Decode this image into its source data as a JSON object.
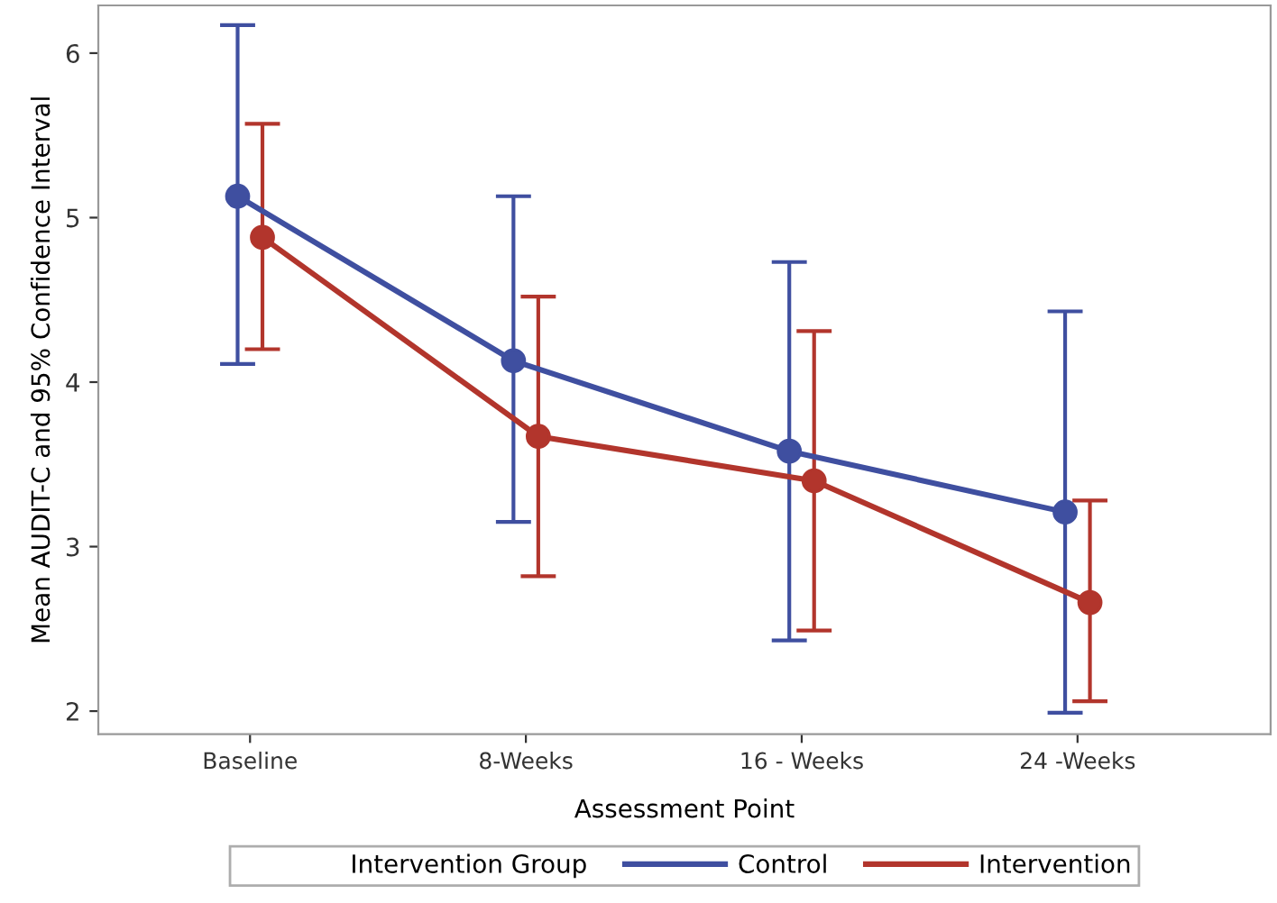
{
  "chart_data": {
    "type": "line",
    "xlabel": "Assessment Point",
    "ylabel": "Mean AUDIT-C and 95% Confidence Interval",
    "categories": [
      "Baseline",
      "8-Weeks",
      "16 - Weeks",
      "24 -Weeks"
    ],
    "series": [
      {
        "name": "Control",
        "color": "#3f4fa0",
        "values": [
          5.13,
          4.13,
          3.58,
          3.21
        ],
        "errors": [
          [
            4.11,
            6.17
          ],
          [
            3.15,
            5.13
          ],
          [
            2.43,
            4.73
          ],
          [
            1.99,
            4.43
          ]
        ]
      },
      {
        "name": "Intervention",
        "color": "#b2352c",
        "values": [
          4.88,
          3.67,
          3.4,
          2.66
        ],
        "errors": [
          [
            4.2,
            5.57
          ],
          [
            2.82,
            4.52
          ],
          [
            2.49,
            4.31
          ],
          [
            2.06,
            3.28
          ]
        ]
      }
    ],
    "ylim": [
      1.86,
      6.29
    ],
    "yticks": [
      2,
      3,
      4,
      5,
      6
    ],
    "legend_title": "Intervention Group",
    "legend": "bottom",
    "marker": "circle",
    "line_style": "solid",
    "grid": false
  }
}
